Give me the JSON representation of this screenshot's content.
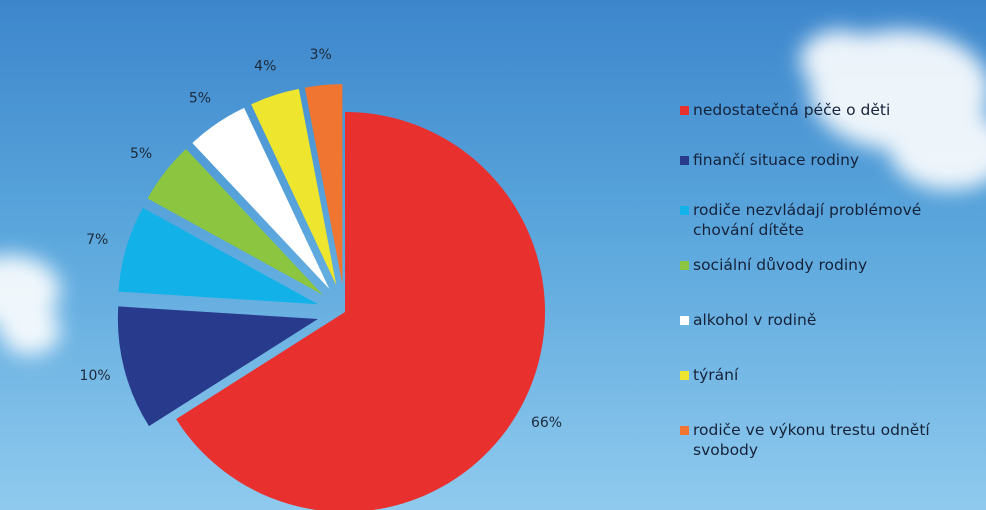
{
  "chart_data": {
    "type": "pie",
    "categories": [
      "nedostatečná péče o děti",
      "finančí situace rodiny",
      "rodiče nezvládají problémové chování dítěte",
      "sociální důvody rodiny",
      "alkohol v rodině",
      "týrání",
      "rodiče ve výkonu trestu odnětí svobody"
    ],
    "values": [
      66,
      10,
      7,
      5,
      5,
      4,
      3
    ],
    "value_labels": [
      "66%",
      "10%",
      "7%",
      "5%",
      "5%",
      "4%",
      "3%"
    ],
    "colors": [
      "#e8302e",
      "#283a8c",
      "#12b2e8",
      "#8cc640",
      "#ffffff",
      "#eee52e",
      "#ef7530"
    ],
    "legend": "right"
  }
}
